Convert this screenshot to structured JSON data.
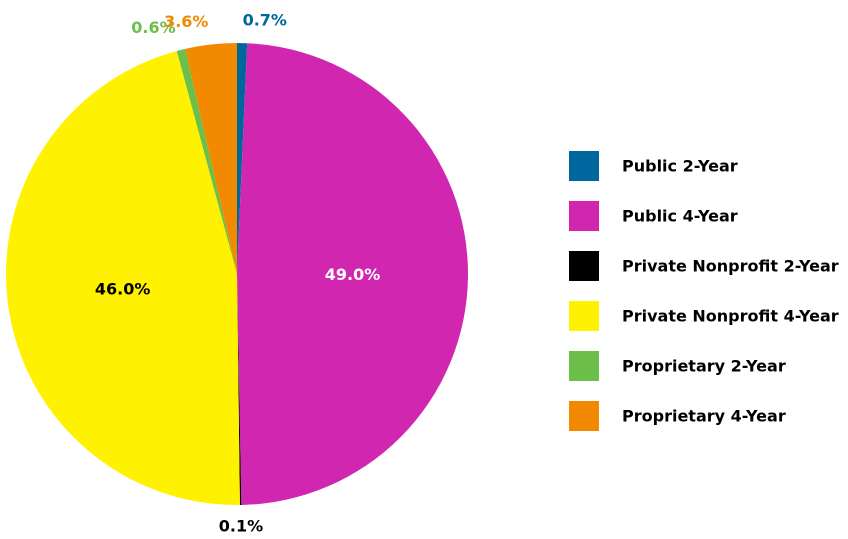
{
  "chart_data": {
    "type": "pie",
    "categories": [
      "Public 2-Year",
      "Public 4-Year",
      "Private Nonprofit 2-Year",
      "Private Nonprofit 4-Year",
      "Proprietary 2-Year",
      "Proprietary 4-Year"
    ],
    "values": [
      0.7,
      49.0,
      0.1,
      46.0,
      0.6,
      3.6
    ],
    "value_labels": [
      "0.7%",
      "49.0%",
      "0.1%",
      "46.0%",
      "0.6%",
      "3.6%"
    ],
    "colors": [
      "#00679e",
      "#d026b0",
      "#000000",
      "#fff200",
      "#6cc04a",
      "#f18a00"
    ],
    "legend": "right"
  }
}
